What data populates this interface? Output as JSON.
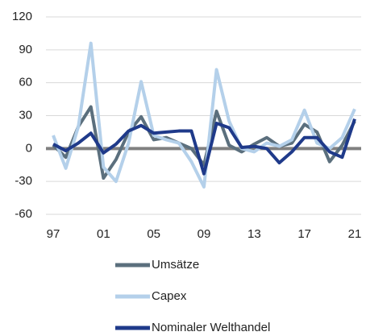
{
  "chart_data": {
    "type": "line",
    "categories": [
      "97",
      null,
      null,
      null,
      "01",
      null,
      null,
      null,
      "05",
      null,
      null,
      null,
      "09",
      null,
      null,
      null,
      "13",
      null,
      null,
      null,
      "17",
      null,
      null,
      null,
      "21"
    ],
    "series": [
      {
        "name": "Umsätze",
        "color": "#5b6f7d",
        "values": [
          3,
          -8,
          20,
          38,
          -27,
          -10,
          15,
          29,
          8,
          10,
          5,
          0,
          -15,
          34,
          3,
          -3,
          4,
          10,
          2,
          5,
          22,
          15,
          -12,
          3,
          25
        ]
      },
      {
        "name": "Capex",
        "color": "#b4d0ea",
        "values": [
          12,
          -18,
          20,
          96,
          -17,
          -30,
          5,
          61,
          12,
          8,
          5,
          -12,
          -35,
          72,
          25,
          0,
          -3,
          5,
          2,
          8,
          35,
          5,
          0,
          10,
          36
        ]
      },
      {
        "name": "Nominaler Welthandel",
        "color": "#1f3a8a",
        "values": [
          4,
          -2,
          5,
          14,
          -4,
          4,
          16,
          21,
          14,
          15,
          16,
          16,
          -23,
          23,
          19,
          1,
          2,
          0,
          -13,
          -3,
          10,
          10,
          -3,
          -8,
          27
        ]
      }
    ],
    "ylim": [
      -60,
      120
    ],
    "yticks": [
      -60,
      -30,
      0,
      30,
      60,
      90,
      120
    ],
    "grid": true,
    "legend": "bottom"
  }
}
